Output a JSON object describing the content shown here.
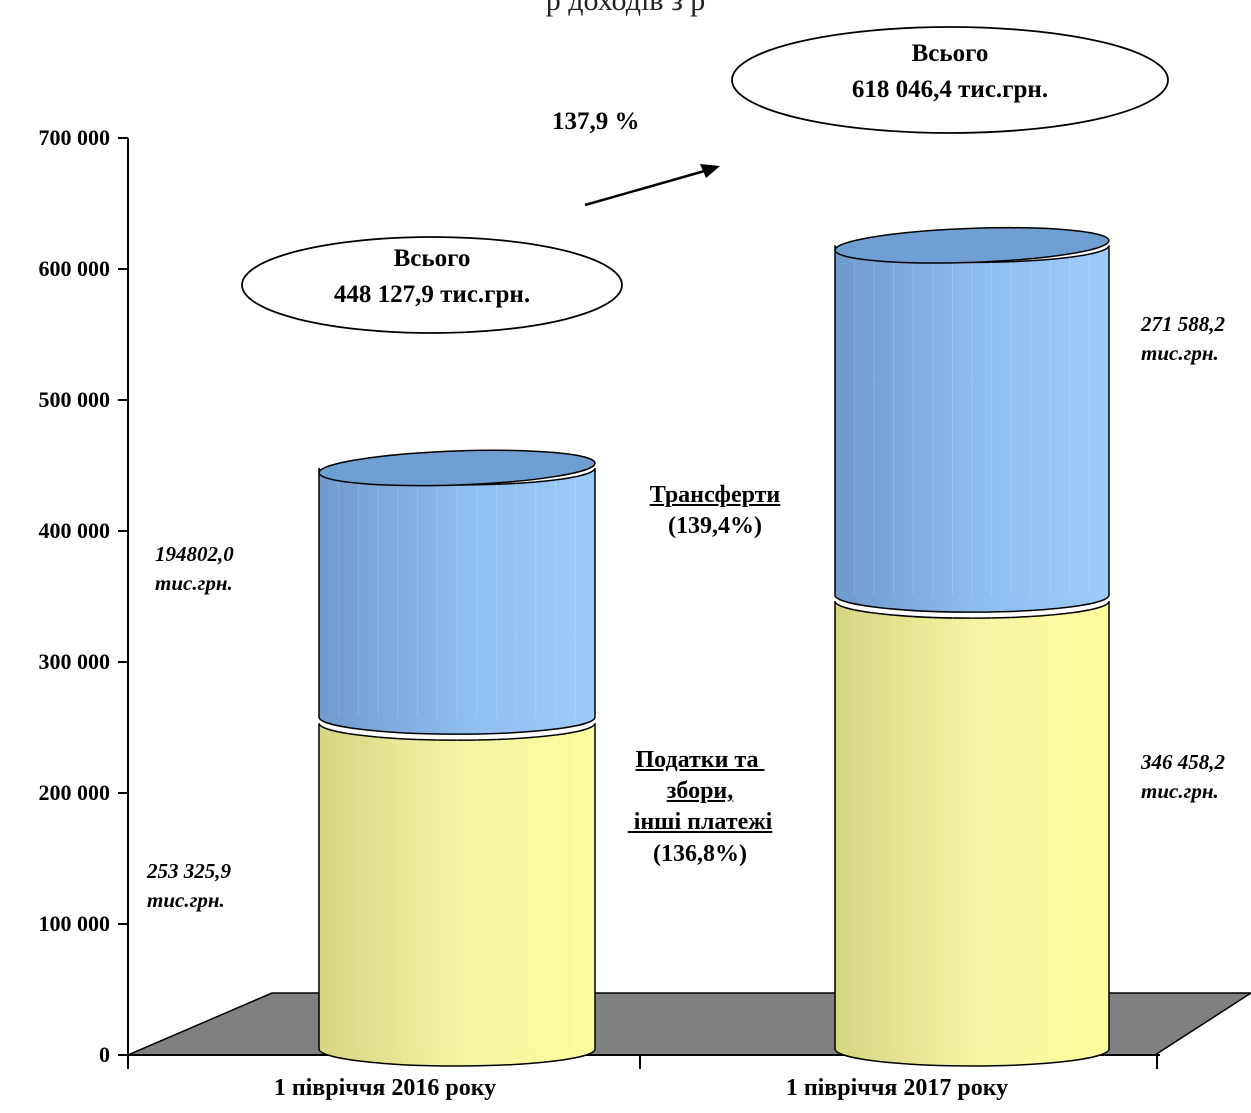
{
  "header_fragment": "р            доходів з     р",
  "chart_data": {
    "type": "bar",
    "stacked": true,
    "categories": [
      "1 півріччя 2016 року",
      "1 півріччя 2017 року"
    ],
    "series": [
      {
        "name": "Податки та збори, інші платежі (136,8%)",
        "values": [
          253325.9,
          346458.2
        ],
        "color": "#eeee9a"
      },
      {
        "name": "Трансферти (139,4%)",
        "values": [
          194802.0,
          271588.2
        ],
        "color": "#87b6e8"
      }
    ],
    "ylim": [
      0,
      700000
    ],
    "yticks": [
      "0",
      "100 000",
      "200 000",
      "300 000",
      "400 000",
      "500 000",
      "600 000",
      "700 000"
    ],
    "grid": false,
    "legend": "inline labels between bars"
  },
  "labels": {
    "bar1_transfers": [
      "194802,0",
      "тис.грн."
    ],
    "bar1_taxes": [
      "253 325,9",
      "тис.грн."
    ],
    "bar2_transfers": [
      "271 588,2",
      "тис.грн."
    ],
    "bar2_taxes": [
      "346 458,2",
      "тис.грн."
    ],
    "transfers_title": "Трансферти",
    "transfers_pct": "(139,4%)",
    "taxes_line1": "Податки та ",
    "taxes_line2": "збори,",
    "taxes_line3": " інші платежі",
    "taxes_pct": "(136,8%)",
    "total1_title": "Всього",
    "total1_value": "448 127,9 тис.грн.",
    "total2_title": "Всього",
    "total2_value": "618 046,4 тис.грн.",
    "growth": "137,9 %"
  },
  "colors": {
    "taxes": "#eeee9a",
    "transfers": "#87b6e8",
    "floor": "#808080"
  }
}
